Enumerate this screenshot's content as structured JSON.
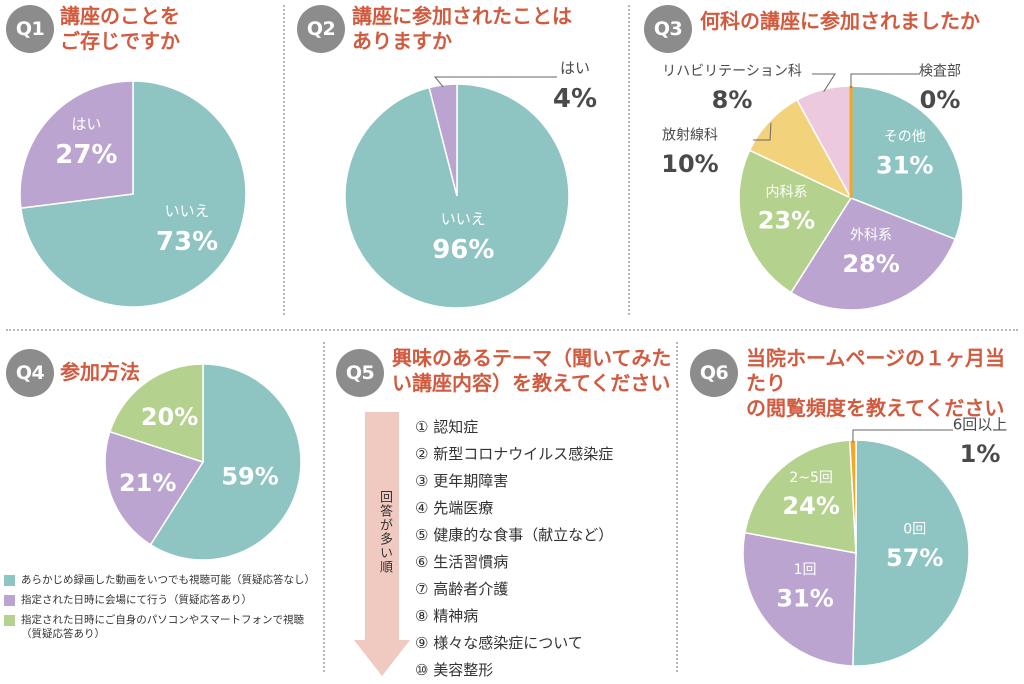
{
  "colors": {
    "teal": "#8ec4c2",
    "purple": "#bba5d0",
    "green": "#b5d18e",
    "yellow": "#f2d27a",
    "pink": "#ecc9dc",
    "orange": "#f5a623",
    "title": "#d25a3f",
    "badge": "#8c8c8c",
    "arrow": "#f0c9c0"
  },
  "q1": {
    "badge": "Q1",
    "title": "講座のことを\nご存じですか"
  },
  "q2": {
    "badge": "Q2",
    "title": "講座に参加されたことは\nありますか"
  },
  "q3": {
    "badge": "Q3",
    "title": "何科の講座に参加されましたか"
  },
  "q4": {
    "badge": "Q4",
    "title": "参加方法",
    "legend": [
      "あらかじめ録画した動画をいつでも視聴可能（質疑応答なし）",
      "指定された日時に会場にて行う（質疑応答あり）",
      "指定された日時にご自身のパソコンやスマートフォンで視聴（質疑応答あり）"
    ]
  },
  "q5": {
    "badge": "Q5",
    "title": "興味のあるテーマ（聞いてみた\nい講座内容）を教えてください",
    "arrow_label": "回答が多い順",
    "items": [
      "① 認知症",
      "② 新型コロナウイルス感染症",
      "③ 更年期障害",
      "④ 先端医療",
      "⑤ 健康的な食事（献立など）",
      "⑥ 生活習慣病",
      "⑦ 高齢者介護",
      "⑧ 精神病",
      "⑨ 様々な感染症について",
      "⑩ 美容整形"
    ]
  },
  "q6": {
    "badge": "Q6",
    "title": "当院ホームページの１ヶ月当たり\nの閲覧頻度を教えてください"
  },
  "chart_data": [
    {
      "type": "pie",
      "labels": [
        "いいえ",
        "はい"
      ],
      "values": [
        73,
        27
      ],
      "display": [
        "73%",
        "27%"
      ],
      "colors": [
        "#8ec4c2",
        "#bba5d0"
      ]
    },
    {
      "type": "pie",
      "labels": [
        "いいえ",
        "はい"
      ],
      "values": [
        96,
        4
      ],
      "display": [
        "96%",
        "4%"
      ],
      "colors": [
        "#8ec4c2",
        "#bba5d0"
      ]
    },
    {
      "type": "pie",
      "labels": [
        "その他",
        "外科系",
        "内科系",
        "放射線科",
        "リハビリテーション科",
        "検査部"
      ],
      "values": [
        31,
        28,
        23,
        10,
        8,
        0
      ],
      "display": [
        "31%",
        "28%",
        "23%",
        "10%",
        "8%",
        "0%"
      ],
      "colors": [
        "#8ec4c2",
        "#bba5d0",
        "#b5d18e",
        "#f2d27a",
        "#ecc9dc",
        "#f5a623"
      ]
    },
    {
      "type": "pie",
      "labels": [
        "",
        "",
        ""
      ],
      "values": [
        59,
        21,
        20
      ],
      "display": [
        "59%",
        "21%",
        "20%"
      ],
      "colors": [
        "#8ec4c2",
        "#bba5d0",
        "#b5d18e"
      ]
    },
    {
      "type": "pie",
      "labels": [
        "0回",
        "1回",
        "2~5回",
        "6回以上"
      ],
      "values": [
        57,
        31,
        24,
        1
      ],
      "display": [
        "57%",
        "31%",
        "24%",
        "1%"
      ],
      "colors": [
        "#8ec4c2",
        "#bba5d0",
        "#b5d18e",
        "#f5a623"
      ]
    }
  ]
}
